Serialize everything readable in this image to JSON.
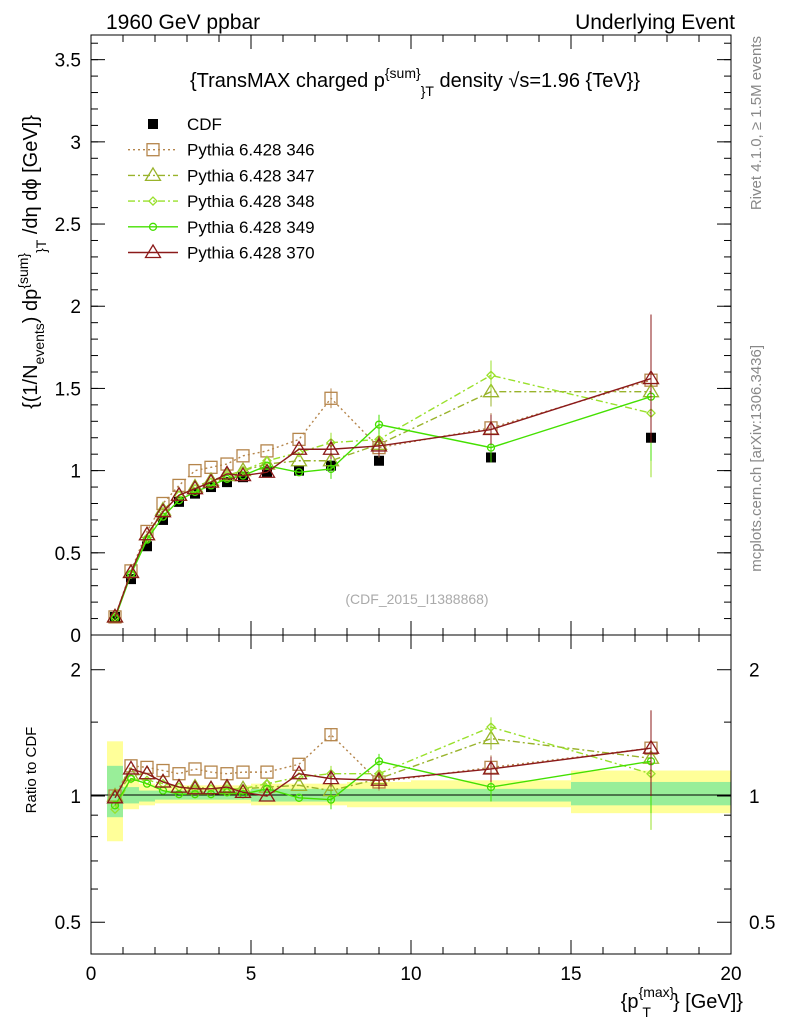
{
  "header": {
    "left": "1960 GeV ppbar",
    "right": "Underlying Event"
  },
  "side_labels": {
    "rivet": "Rivet 4.1.0, ≥ 1.5M events",
    "mcplots": "mcplots.cern.ch [arXiv:1306.3436]"
  },
  "chart_data": [
    {
      "type": "scatter",
      "panel": "main",
      "title_parts": {
        "a": "{TransMAX charged p",
        "sup": "{sum}",
        "sub": "}T",
        "b": " density √s=1.96 {TeV}}"
      },
      "watermark": "(CDF_2015_I1388868)",
      "ylabel_parts": {
        "a": "{(1/N",
        "sub1": "events",
        "b": ") dp",
        "sup": "{sum}",
        "sub2": "}T",
        "c": " /dη  dϕ [GeV]}"
      },
      "xlim": [
        0,
        20
      ],
      "ylim": [
        0,
        3.65
      ],
      "yticks": [
        0,
        0.5,
        1,
        1.5,
        2,
        2.5,
        3,
        3.5
      ],
      "ytick_labels": [
        "0",
        "0.5",
        "1",
        "1.5",
        "2",
        "2.5",
        "3",
        "3.5"
      ],
      "legend_position": "top-left",
      "series": [
        {
          "name": "CDF",
          "style": "data",
          "color": "#000000",
          "x": [
            0.75,
            1.25,
            1.75,
            2.25,
            2.75,
            3.25,
            3.75,
            4.25,
            4.75,
            5.5,
            6.5,
            7.5,
            9.0,
            12.5,
            17.5
          ],
          "y": [
            0.11,
            0.34,
            0.54,
            0.7,
            0.81,
            0.86,
            0.9,
            0.93,
            0.96,
            0.99,
            1.0,
            1.03,
            1.06,
            1.08,
            1.2
          ]
        },
        {
          "name": "Pythia 6.428 346",
          "style": "dotted",
          "marker": "square",
          "color": "#b5854b",
          "x": [
            0.75,
            1.25,
            1.75,
            2.25,
            2.75,
            3.25,
            3.75,
            4.25,
            4.75,
            5.5,
            6.5,
            7.5,
            9.0,
            12.5,
            17.5
          ],
          "y": [
            0.11,
            0.39,
            0.63,
            0.8,
            0.91,
            1.0,
            1.02,
            1.04,
            1.09,
            1.12,
            1.19,
            1.44,
            1.14,
            1.26,
            1.55
          ]
        },
        {
          "name": "Pythia 6.428 347",
          "style": "dashdot",
          "marker": "triangle",
          "color": "#99b32b",
          "x": [
            0.75,
            1.25,
            1.75,
            2.25,
            2.75,
            3.25,
            3.75,
            4.25,
            4.75,
            5.5,
            6.5,
            7.5,
            9.0,
            12.5,
            17.5
          ],
          "y": [
            0.11,
            0.38,
            0.61,
            0.76,
            0.85,
            0.9,
            0.94,
            0.97,
            1.0,
            1.04,
            1.06,
            1.06,
            1.16,
            1.48,
            1.48
          ]
        },
        {
          "name": "Pythia 6.428 348",
          "style": "dashdot",
          "marker": "diamond",
          "color": "#99e02b",
          "x": [
            0.75,
            1.25,
            1.75,
            2.25,
            2.75,
            3.25,
            3.75,
            4.25,
            4.75,
            5.5,
            6.5,
            7.5,
            9.0,
            12.5,
            17.5
          ],
          "y": [
            0.11,
            0.37,
            0.59,
            0.75,
            0.85,
            0.89,
            0.93,
            0.97,
            1.0,
            1.06,
            1.11,
            1.17,
            1.19,
            1.58,
            1.35
          ]
        },
        {
          "name": "Pythia 6.428 349",
          "style": "solid",
          "marker": "circle",
          "color": "#44e000",
          "x": [
            0.75,
            1.25,
            1.75,
            2.25,
            2.75,
            3.25,
            3.75,
            4.25,
            4.75,
            5.5,
            6.5,
            7.5,
            9.0,
            12.5,
            17.5
          ],
          "y": [
            0.1,
            0.37,
            0.58,
            0.72,
            0.82,
            0.87,
            0.91,
            0.95,
            0.97,
            1.03,
            0.99,
            1.01,
            1.28,
            1.14,
            1.45
          ]
        },
        {
          "name": "Pythia 6.428 370",
          "style": "solid",
          "marker": "triangle",
          "color": "#8b1a1a",
          "x": [
            0.75,
            1.25,
            1.75,
            2.25,
            2.75,
            3.25,
            3.75,
            4.25,
            4.75,
            5.5,
            6.5,
            7.5,
            9.0,
            12.5,
            17.5
          ],
          "y": [
            0.11,
            0.38,
            0.61,
            0.75,
            0.85,
            0.89,
            0.93,
            0.98,
            0.97,
            0.99,
            1.13,
            1.13,
            1.15,
            1.25,
            1.56
          ]
        }
      ]
    },
    {
      "type": "scatter",
      "panel": "ratio",
      "ylabel": "Ratio to CDF",
      "xlabel_parts": {
        "a": "{p",
        "sup": "{max}",
        "sub": "T",
        "b": "} [GeV]}"
      },
      "xlim": [
        0,
        20
      ],
      "ylim": [
        0.42,
        2.42
      ],
      "yscale": "log",
      "xticks": [
        0,
        5,
        10,
        15,
        20
      ],
      "xtick_labels": [
        "0",
        "5",
        "10",
        "15",
        "20"
      ],
      "yticks": [
        0.5,
        1,
        2
      ],
      "ytick_labels": [
        "0.5",
        "1",
        "2"
      ],
      "band_bins": [
        {
          "x0": 0.5,
          "x1": 1.0,
          "yellow": [
            0.78,
            1.35
          ],
          "green": [
            0.89,
            1.18
          ]
        },
        {
          "x0": 1.0,
          "x1": 1.5,
          "yellow": [
            0.93,
            1.1
          ],
          "green": [
            0.96,
            1.05
          ]
        },
        {
          "x0": 1.5,
          "x1": 2.0,
          "yellow": [
            0.95,
            1.07
          ],
          "green": [
            0.97,
            1.03
          ]
        },
        {
          "x0": 2.0,
          "x1": 3.5,
          "yellow": [
            0.96,
            1.06
          ],
          "green": [
            0.98,
            1.03
          ]
        },
        {
          "x0": 3.5,
          "x1": 5.0,
          "yellow": [
            0.96,
            1.06
          ],
          "green": [
            0.98,
            1.03
          ]
        },
        {
          "x0": 5.0,
          "x1": 8.0,
          "yellow": [
            0.95,
            1.07
          ],
          "green": [
            0.97,
            1.04
          ]
        },
        {
          "x0": 8.0,
          "x1": 10.0,
          "yellow": [
            0.94,
            1.08
          ],
          "green": [
            0.97,
            1.04
          ]
        },
        {
          "x0": 10.0,
          "x1": 15.0,
          "yellow": [
            0.94,
            1.09
          ],
          "green": [
            0.97,
            1.04
          ]
        },
        {
          "x0": 15.0,
          "x1": 20.0,
          "yellow": [
            0.91,
            1.15
          ],
          "green": [
            0.95,
            1.08
          ]
        }
      ],
      "series": [
        {
          "name": "Pythia 6.428 346",
          "x": [
            0.75,
            1.25,
            1.75,
            2.25,
            2.75,
            3.25,
            3.75,
            4.25,
            4.75,
            5.5,
            6.5,
            7.5,
            9.0,
            12.5,
            17.5
          ],
          "y": [
            1.0,
            1.18,
            1.17,
            1.15,
            1.13,
            1.16,
            1.14,
            1.13,
            1.14,
            1.14,
            1.19,
            1.4,
            1.08,
            1.17,
            1.3
          ]
        },
        {
          "name": "Pythia 6.428 347",
          "x": [
            0.75,
            1.25,
            1.75,
            2.25,
            2.75,
            3.25,
            3.75,
            4.25,
            4.75,
            5.5,
            6.5,
            7.5,
            9.0,
            12.5,
            17.5
          ],
          "y": [
            1.0,
            1.12,
            1.13,
            1.08,
            1.05,
            1.05,
            1.04,
            1.04,
            1.04,
            1.05,
            1.06,
            1.03,
            1.1,
            1.37,
            1.23
          ]
        },
        {
          "name": "Pythia 6.428 348",
          "x": [
            0.75,
            1.25,
            1.75,
            2.25,
            2.75,
            3.25,
            3.75,
            4.25,
            4.75,
            5.5,
            6.5,
            7.5,
            9.0,
            12.5,
            17.5
          ],
          "y": [
            0.93,
            1.1,
            1.09,
            1.07,
            1.05,
            1.04,
            1.04,
            1.04,
            1.04,
            1.07,
            1.11,
            1.13,
            1.13,
            1.46,
            1.13
          ]
        },
        {
          "name": "Pythia 6.428 349",
          "x": [
            0.75,
            1.25,
            1.75,
            2.25,
            2.75,
            3.25,
            3.75,
            4.25,
            4.75,
            5.5,
            6.5,
            7.5,
            9.0,
            12.5,
            17.5
          ],
          "y": [
            0.95,
            1.1,
            1.07,
            1.03,
            1.01,
            1.01,
            1.01,
            1.02,
            1.01,
            1.04,
            0.99,
            0.98,
            1.21,
            1.05,
            1.21
          ]
        },
        {
          "name": "Pythia 6.428 370",
          "x": [
            0.75,
            1.25,
            1.75,
            2.25,
            2.75,
            3.25,
            3.75,
            4.25,
            4.75,
            5.5,
            6.5,
            7.5,
            9.0,
            12.5,
            17.5
          ],
          "y": [
            0.99,
            1.16,
            1.13,
            1.08,
            1.05,
            1.04,
            1.04,
            1.05,
            1.02,
            1.0,
            1.13,
            1.1,
            1.09,
            1.16,
            1.3
          ]
        }
      ]
    }
  ]
}
